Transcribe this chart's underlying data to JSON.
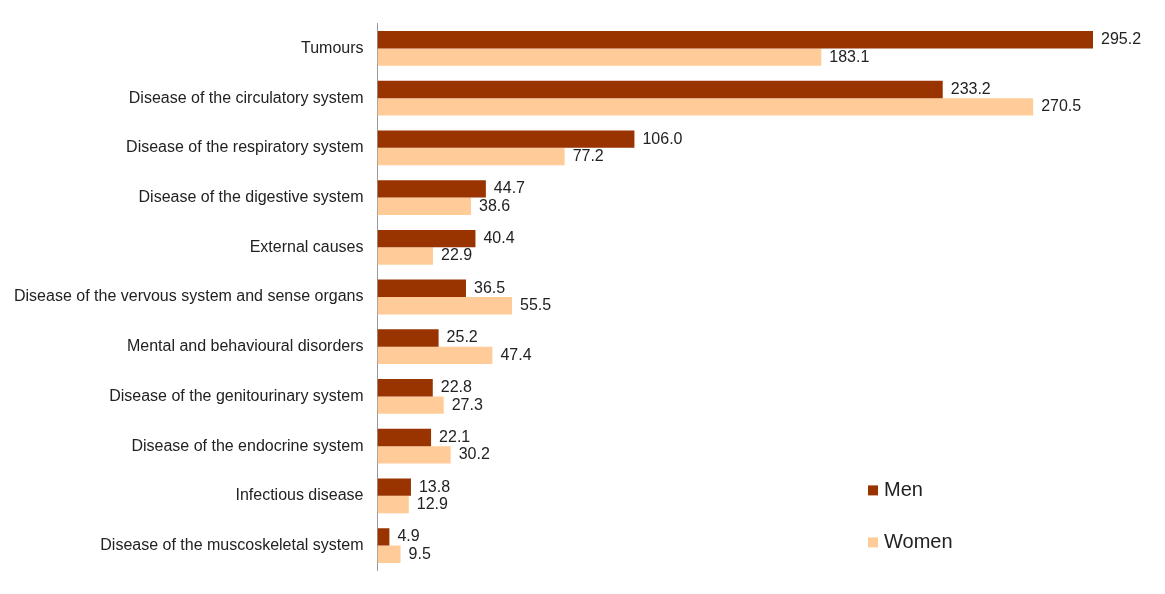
{
  "chart_data": {
    "type": "bar",
    "orientation": "horizontal",
    "legend": "bottom right",
    "categories": [
      "Tumours",
      "Disease of the circulatory system",
      "Disease of the respiratory system",
      "Disease of the digestive system",
      "External causes",
      "Disease of the vervous system and sense organs",
      "Mental and behavioural disorders",
      "Disease of the genitourinary system",
      "Disease of the endocrine system",
      "Infectious disease",
      "Disease of the muscoskeletal system"
    ],
    "series": [
      {
        "name": "Men",
        "color": "#993300",
        "values": [
          295.2,
          233.2,
          106.0,
          44.7,
          40.4,
          36.5,
          25.2,
          22.8,
          22.1,
          13.8,
          4.9
        ],
        "value_labels": [
          "295.2",
          "233.2",
          "106.0",
          "44.7",
          "40.4",
          "36.5",
          "25.2",
          "22.8",
          "22.1",
          "13.8",
          "4.9"
        ]
      },
      {
        "name": "Women",
        "color": "#ffcc99",
        "values": [
          183.1,
          270.5,
          77.2,
          38.6,
          22.9,
          55.5,
          47.4,
          27.3,
          30.2,
          12.9,
          9.5
        ],
        "value_labels": [
          "183.1",
          "270.5",
          "77.2",
          "38.6",
          "22.9",
          "55.5",
          "47.4",
          "27.3",
          "30.2",
          "12.9",
          "9.5"
        ]
      }
    ]
  }
}
